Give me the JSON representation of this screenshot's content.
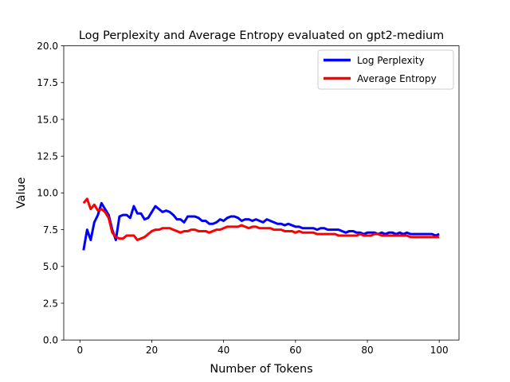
{
  "chart_data": {
    "type": "line",
    "title": "Log Perplexity and Average Entropy evaluated on gpt2-medium",
    "xlabel": "Number of Tokens",
    "ylabel": "Value",
    "xlim": [
      -4.5,
      105.5
    ],
    "ylim": [
      0,
      20
    ],
    "xticks": [
      0,
      20,
      40,
      60,
      80,
      100
    ],
    "yticks": [
      0,
      2.5,
      5,
      7.5,
      10,
      12.5,
      15,
      17.5,
      20
    ],
    "xtick_labels": [
      "0",
      "20",
      "40",
      "60",
      "80",
      "100"
    ],
    "ytick_labels": [
      "0.0",
      "2.5",
      "5.0",
      "7.5",
      "10.0",
      "12.5",
      "15.0",
      "17.5",
      "20.0"
    ],
    "grid": false,
    "legend": {
      "position": "top-right"
    },
    "series": [
      {
        "name": "Log Perplexity",
        "color": "#0000ff",
        "x": [
          1,
          2,
          3,
          4,
          5,
          6,
          7,
          8,
          9,
          10,
          11,
          12,
          13,
          14,
          15,
          16,
          17,
          18,
          19,
          20,
          21,
          22,
          23,
          24,
          25,
          26,
          27,
          28,
          29,
          30,
          31,
          32,
          33,
          34,
          35,
          36,
          37,
          38,
          39,
          40,
          41,
          42,
          43,
          44,
          45,
          46,
          47,
          48,
          49,
          50,
          51,
          52,
          53,
          54,
          55,
          56,
          57,
          58,
          59,
          60,
          61,
          62,
          63,
          64,
          65,
          66,
          67,
          68,
          69,
          70,
          71,
          72,
          73,
          74,
          75,
          76,
          77,
          78,
          79,
          80,
          81,
          82,
          83,
          84,
          85,
          86,
          87,
          88,
          89,
          90,
          91,
          92,
          93,
          94,
          95,
          96,
          97,
          98,
          99,
          100
        ],
        "y": [
          6.1,
          7.5,
          6.8,
          8.0,
          8.5,
          9.3,
          8.9,
          8.5,
          7.5,
          6.8,
          8.4,
          8.5,
          8.5,
          8.3,
          9.1,
          8.6,
          8.6,
          8.2,
          8.3,
          8.7,
          9.1,
          8.9,
          8.7,
          8.8,
          8.7,
          8.5,
          8.2,
          8.2,
          8.0,
          8.4,
          8.4,
          8.4,
          8.3,
          8.1,
          8.1,
          7.9,
          7.9,
          8.0,
          8.2,
          8.1,
          8.3,
          8.4,
          8.4,
          8.3,
          8.1,
          8.2,
          8.2,
          8.1,
          8.2,
          8.1,
          8.0,
          8.2,
          8.1,
          8.0,
          7.9,
          7.9,
          7.8,
          7.9,
          7.8,
          7.7,
          7.7,
          7.6,
          7.6,
          7.6,
          7.6,
          7.5,
          7.6,
          7.6,
          7.5,
          7.5,
          7.5,
          7.5,
          7.4,
          7.3,
          7.4,
          7.4,
          7.3,
          7.3,
          7.2,
          7.3,
          7.3,
          7.3,
          7.2,
          7.3,
          7.2,
          7.3,
          7.3,
          7.2,
          7.3,
          7.2,
          7.3,
          7.2,
          7.2,
          7.2,
          7.2,
          7.2,
          7.2,
          7.2,
          7.1,
          7.2
        ]
      },
      {
        "name": "Average Entropy",
        "color": "#ff0000",
        "x": [
          1,
          2,
          3,
          4,
          5,
          6,
          7,
          8,
          9,
          10,
          11,
          12,
          13,
          14,
          15,
          16,
          17,
          18,
          19,
          20,
          21,
          22,
          23,
          24,
          25,
          26,
          27,
          28,
          29,
          30,
          31,
          32,
          33,
          34,
          35,
          36,
          37,
          38,
          39,
          40,
          41,
          42,
          43,
          44,
          45,
          46,
          47,
          48,
          49,
          50,
          51,
          52,
          53,
          54,
          55,
          56,
          57,
          58,
          59,
          60,
          61,
          62,
          63,
          64,
          65,
          66,
          67,
          68,
          69,
          70,
          71,
          72,
          73,
          74,
          75,
          76,
          77,
          78,
          79,
          80,
          81,
          82,
          83,
          84,
          85,
          86,
          87,
          88,
          89,
          90,
          91,
          92,
          93,
          94,
          95,
          96,
          97,
          98,
          99,
          100
        ],
        "y": [
          9.3,
          9.6,
          8.9,
          9.2,
          8.8,
          8.9,
          8.7,
          8.3,
          7.3,
          7.0,
          6.9,
          6.9,
          7.1,
          7.1,
          7.1,
          6.8,
          6.9,
          7.0,
          7.2,
          7.4,
          7.5,
          7.5,
          7.6,
          7.6,
          7.6,
          7.5,
          7.4,
          7.3,
          7.4,
          7.4,
          7.5,
          7.5,
          7.4,
          7.4,
          7.4,
          7.3,
          7.4,
          7.5,
          7.5,
          7.6,
          7.7,
          7.7,
          7.7,
          7.7,
          7.8,
          7.7,
          7.6,
          7.7,
          7.7,
          7.6,
          7.6,
          7.6,
          7.6,
          7.5,
          7.5,
          7.5,
          7.4,
          7.4,
          7.4,
          7.3,
          7.4,
          7.3,
          7.3,
          7.3,
          7.3,
          7.2,
          7.2,
          7.2,
          7.2,
          7.2,
          7.2,
          7.1,
          7.1,
          7.1,
          7.1,
          7.1,
          7.1,
          7.2,
          7.1,
          7.1,
          7.1,
          7.2,
          7.2,
          7.1,
          7.1,
          7.1,
          7.1,
          7.1,
          7.1,
          7.1,
          7.1,
          7.0,
          7.0,
          7.0,
          7.0,
          7.0,
          7.0,
          7.0,
          7.0,
          7.0
        ]
      }
    ]
  }
}
